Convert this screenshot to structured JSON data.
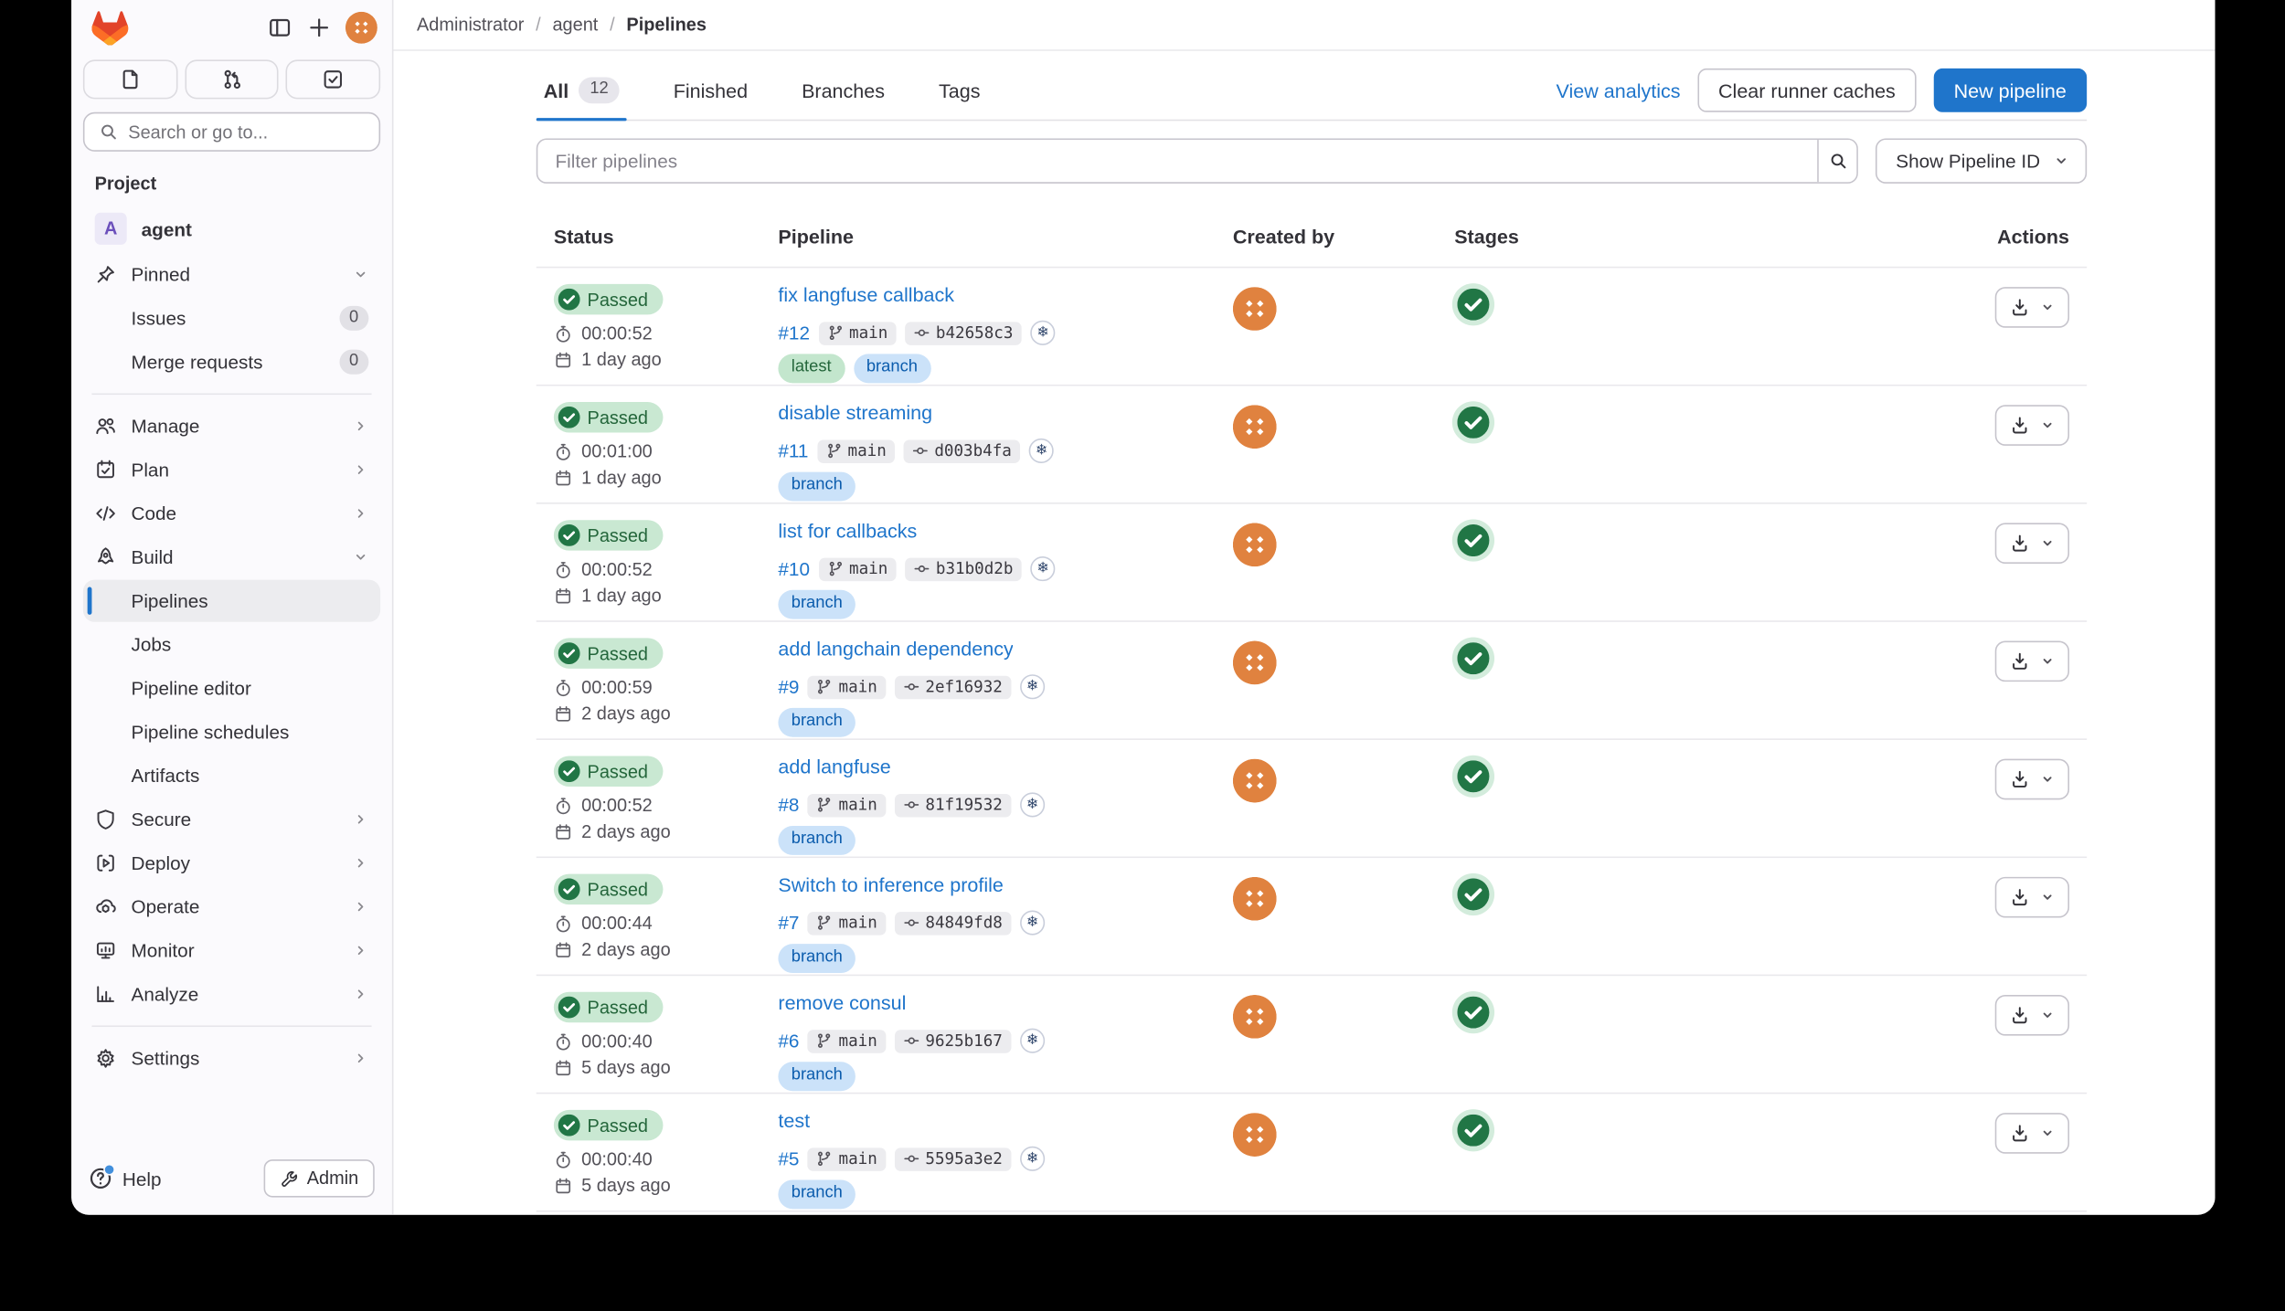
{
  "breadcrumb": {
    "items": [
      "Administrator",
      "agent",
      "Pipelines"
    ]
  },
  "sidebar": {
    "search_placeholder": "Search or go to...",
    "project_section_label": "Project",
    "project": {
      "initial": "A",
      "name": "agent"
    },
    "pinned_label": "Pinned",
    "pinned_items": [
      {
        "label": "Issues",
        "count": "0"
      },
      {
        "label": "Merge requests",
        "count": "0"
      }
    ],
    "nav": [
      {
        "label": "Manage",
        "icon": "people",
        "chevron": "right"
      },
      {
        "label": "Plan",
        "icon": "calendar-check",
        "chevron": "right"
      },
      {
        "label": "Code",
        "icon": "code",
        "chevron": "right"
      },
      {
        "label": "Build",
        "icon": "rocket",
        "chevron": "down",
        "children": [
          {
            "label": "Pipelines",
            "active": true
          },
          {
            "label": "Jobs"
          },
          {
            "label": "Pipeline editor"
          },
          {
            "label": "Pipeline schedules"
          },
          {
            "label": "Artifacts"
          }
        ]
      },
      {
        "label": "Secure",
        "icon": "shield",
        "chevron": "right"
      },
      {
        "label": "Deploy",
        "icon": "deploy",
        "chevron": "right"
      },
      {
        "label": "Operate",
        "icon": "operate",
        "chevron": "right"
      },
      {
        "label": "Monitor",
        "icon": "monitor",
        "chevron": "right"
      },
      {
        "label": "Analyze",
        "icon": "chart",
        "chevron": "right"
      },
      {
        "label": "Settings",
        "icon": "gear",
        "chevron": "right",
        "divider_before": true
      }
    ],
    "help_label": "Help",
    "admin_label": "Admin"
  },
  "header": {
    "tabs": [
      {
        "label": "All",
        "count": "12",
        "active": true
      },
      {
        "label": "Finished"
      },
      {
        "label": "Branches"
      },
      {
        "label": "Tags"
      }
    ],
    "view_analytics_label": "View analytics",
    "clear_caches_label": "Clear runner caches",
    "new_pipeline_label": "New pipeline"
  },
  "filter": {
    "placeholder": "Filter pipelines",
    "show_pipeline_id_label": "Show Pipeline ID"
  },
  "table": {
    "columns": [
      "Status",
      "Pipeline",
      "Created by",
      "Stages",
      "Actions"
    ],
    "rows": [
      {
        "status": "Passed",
        "duration": "00:00:52",
        "age": "1 day ago",
        "title": "fix langfuse callback",
        "id": "#12",
        "branch": "main",
        "commit": "b42658c3",
        "labels": [
          "latest",
          "branch"
        ]
      },
      {
        "status": "Passed",
        "duration": "00:01:00",
        "age": "1 day ago",
        "title": "disable streaming",
        "id": "#11",
        "branch": "main",
        "commit": "d003b4fa",
        "labels": [
          "branch"
        ]
      },
      {
        "status": "Passed",
        "duration": "00:00:52",
        "age": "1 day ago",
        "title": "list for callbacks",
        "id": "#10",
        "branch": "main",
        "commit": "b31b0d2b",
        "labels": [
          "branch"
        ]
      },
      {
        "status": "Passed",
        "duration": "00:00:59",
        "age": "2 days ago",
        "title": "add langchain dependency",
        "id": "#9",
        "branch": "main",
        "commit": "2ef16932",
        "labels": [
          "branch"
        ]
      },
      {
        "status": "Passed",
        "duration": "00:00:52",
        "age": "2 days ago",
        "title": "add langfuse",
        "id": "#8",
        "branch": "main",
        "commit": "81f19532",
        "labels": [
          "branch"
        ]
      },
      {
        "status": "Passed",
        "duration": "00:00:44",
        "age": "2 days ago",
        "title": "Switch to inference profile",
        "id": "#7",
        "branch": "main",
        "commit": "84849fd8",
        "labels": [
          "branch"
        ]
      },
      {
        "status": "Passed",
        "duration": "00:00:40",
        "age": "5 days ago",
        "title": "remove consul",
        "id": "#6",
        "branch": "main",
        "commit": "9625b167",
        "labels": [
          "branch"
        ]
      },
      {
        "status": "Passed",
        "duration": "00:00:40",
        "age": "5 days ago",
        "title": "test",
        "id": "#5",
        "branch": "main",
        "commit": "5595a3e2",
        "labels": [
          "branch"
        ]
      }
    ]
  },
  "icons": {
    "commit_author_avatar_glyph": "❄",
    "accent_blue": "#1f75cb",
    "success_bg": "#c3e6cd",
    "success_text": "#24663b",
    "info_bg": "#cbe2f9",
    "info_text": "#0b5cad",
    "stage_green": "#217645",
    "avatar_orange": "#e0823f"
  }
}
